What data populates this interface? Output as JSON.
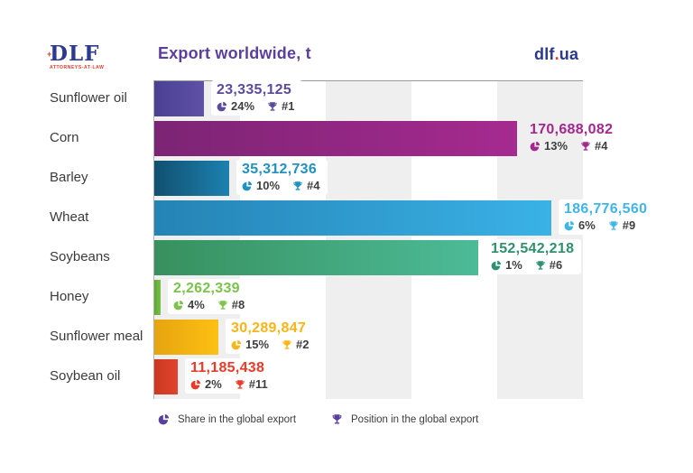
{
  "header": {
    "logo": {
      "text": "DLF",
      "subtext": "ATTORNEYS-AT-LAW",
      "plus": "+"
    },
    "title": "Export worldwide, t",
    "site": {
      "name": "dlf",
      "dot": ".",
      "tld": "ua"
    }
  },
  "colors": {
    "title_purple": "#5b3f9f",
    "site_navy": "#2b3990",
    "logo_red": "#e8392a",
    "stats_text": "#3f3f3f",
    "label_text": "#3b3b3b",
    "band_gray": "#efefef",
    "axis_line": "#9a9a9a",
    "legend_icon_purple": "#5b3f9f"
  },
  "chart_data": {
    "type": "bar",
    "orientation": "horizontal",
    "title": "Export worldwide, t",
    "unit": "t",
    "xlim": [
      0,
      200000000
    ],
    "max_value": 186776560,
    "grid": "vertical-bands",
    "legend_position": "bottom",
    "categories": [
      "Sunflower oil",
      "Corn",
      "Barley",
      "Wheat",
      "Soybeans",
      "Honey",
      "Sunflower meal",
      "Soybean oil"
    ],
    "values": [
      23335125,
      170688082,
      35312736,
      186776560,
      152542218,
      2262339,
      30289847,
      11185438
    ],
    "items": [
      {
        "label": "Sunflower oil",
        "value": 23335125,
        "value_label": "23,335,125",
        "share": "24%",
        "position": "#1",
        "bar_from": "#4a4093",
        "bar_to": "#5f51a6",
        "accent": "#5b4aa0"
      },
      {
        "label": "Corn",
        "value": 170688082,
        "value_label": "170,688,082",
        "share": "13%",
        "position": "#4",
        "bar_from": "#7c2474",
        "bar_to": "#a62a90",
        "accent": "#a3278f"
      },
      {
        "label": "Barley",
        "value": 35312736,
        "value_label": "35,312,736",
        "share": "10%",
        "position": "#4",
        "bar_from": "#11506f",
        "bar_to": "#1c81b0",
        "accent": "#2191c1"
      },
      {
        "label": "Wheat",
        "value": 186776560,
        "value_label": "186,776,560",
        "share": "6%",
        "position": "#9",
        "bar_from": "#2583b5",
        "bar_to": "#3ab2e6",
        "accent": "#41b5e9"
      },
      {
        "label": "Soybeans",
        "value": 152542218,
        "value_label": "152,542,218",
        "share": "1%",
        "position": "#6",
        "bar_from": "#37905e",
        "bar_to": "#4dbb98",
        "accent": "#2e9070"
      },
      {
        "label": "Honey",
        "value": 2262339,
        "value_label": "2,262,339",
        "share": "4%",
        "position": "#8",
        "bar_from": "#5fa933",
        "bar_to": "#76c14a",
        "accent": "#7cc24c"
      },
      {
        "label": "Sunflower meal",
        "value": 30289847,
        "value_label": "30,289,847",
        "share": "15%",
        "position": "#2",
        "bar_from": "#e7a40f",
        "bar_to": "#fdc013",
        "accent": "#f9b517"
      },
      {
        "label": "Soybean oil",
        "value": 11185438,
        "value_label": "11,185,438",
        "share": "2%",
        "position": "#11",
        "bar_from": "#cb3921",
        "bar_to": "#e2422c",
        "accent": "#e93b2a"
      }
    ],
    "legend": [
      {
        "icon": "pie-icon",
        "label": "Share in the global export"
      },
      {
        "icon": "trophy-icon",
        "label": "Position in the global export"
      }
    ]
  }
}
